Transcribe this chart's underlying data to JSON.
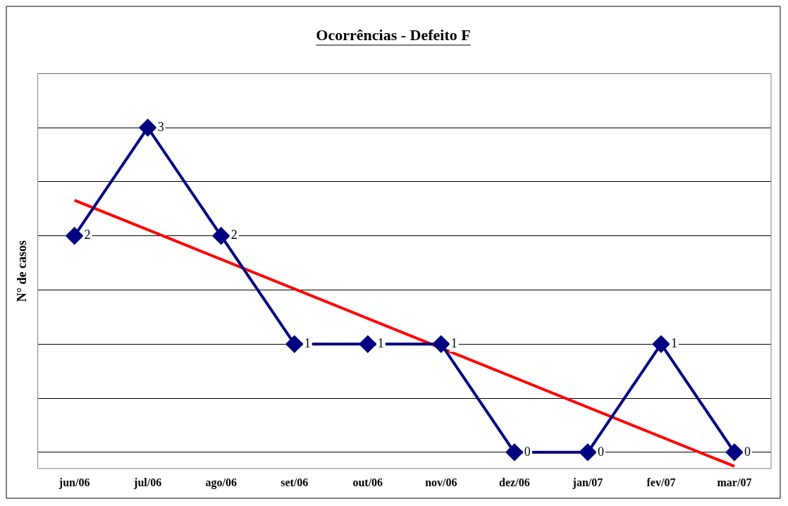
{
  "chart_data": {
    "type": "line",
    "title": "Ocorrências - Defeito F",
    "ylabel": "N° de casos",
    "categories": [
      "jun/06",
      "jul/06",
      "ago/06",
      "set/06",
      "out/06",
      "nov/06",
      "dez/06",
      "jan/07",
      "fev/07",
      "mar/07"
    ],
    "series": [
      {
        "color": "#000080",
        "values": [
          2,
          3,
          2,
          1,
          1,
          1,
          0,
          0,
          1,
          0
        ],
        "value_labels": [
          "2",
          "3",
          "2",
          "1",
          "1",
          "1",
          "0",
          "0",
          "1",
          "0"
        ],
        "marker": "diamond"
      },
      {
        "type": "line",
        "color": "#ff0000",
        "x": [
          "jun/06",
          "mar/07"
        ],
        "values": [
          2.33,
          -0.13
        ],
        "marker": "none"
      }
    ],
    "ylim": [
      -0.15,
      3.5
    ],
    "yticks": [
      {
        "value": 0,
        "label": null
      },
      {
        "value": 0.5,
        "label": null
      },
      {
        "value": 1,
        "label": null
      },
      {
        "value": 1.5,
        "label": null
      },
      {
        "value": 2,
        "label": null
      },
      {
        "value": 2.5,
        "label": null
      },
      {
        "value": 3,
        "label": null
      },
      {
        "value": 3.5,
        "label": null
      }
    ],
    "grid": "y",
    "legend": false
  }
}
